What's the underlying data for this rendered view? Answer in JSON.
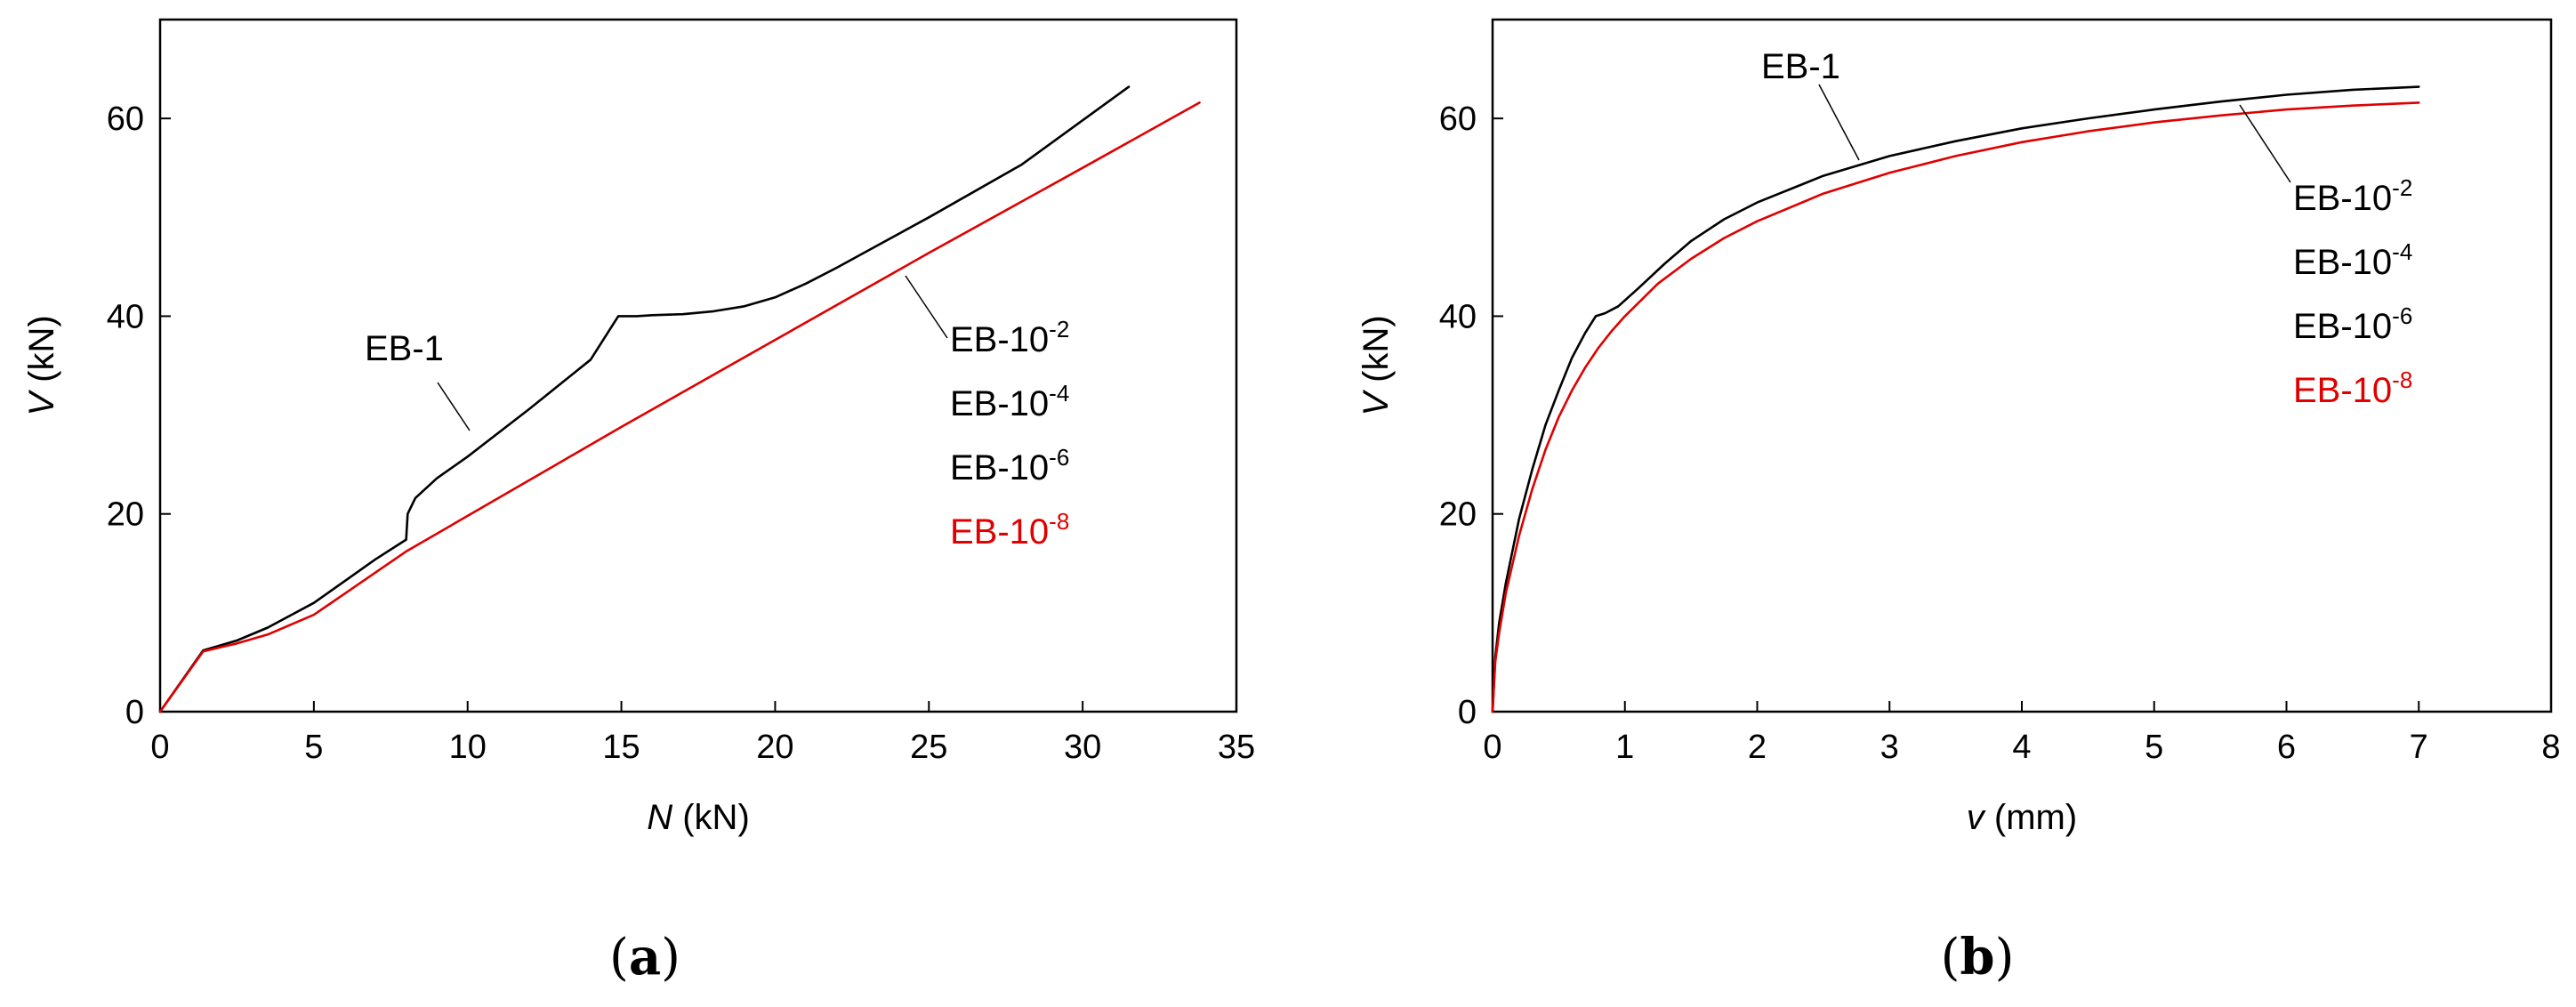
{
  "colors": {
    "black": "#000000",
    "red": "#e00000"
  },
  "chart_data": [
    {
      "id": "a",
      "type": "line",
      "caption": {
        "open": "(",
        "letter": "a",
        "close": ")"
      },
      "xlabel": {
        "var": "N",
        "unit": " (kN)"
      },
      "ylabel": {
        "var": "V",
        "unit": " (kN)"
      },
      "xlim": [
        0,
        35
      ],
      "ylim": [
        0,
        70
      ],
      "xticks": [
        0,
        5,
        10,
        15,
        20,
        25,
        30,
        35
      ],
      "yticks": [
        0,
        20,
        40,
        60
      ],
      "grid": false,
      "series": [
        {
          "name": "EB-1",
          "color": "#000000",
          "points": [
            [
              0,
              0
            ],
            [
              1.4,
              6.2
            ],
            [
              2.5,
              7.2
            ],
            [
              3.5,
              8.5
            ],
            [
              5,
              11
            ],
            [
              6,
              13.2
            ],
            [
              7,
              15.4
            ],
            [
              8,
              17.4
            ],
            [
              8.05,
              20
            ],
            [
              8.3,
              21.6
            ],
            [
              9,
              23.6
            ],
            [
              10,
              25.8
            ],
            [
              12,
              30.6
            ],
            [
              14,
              35.6
            ],
            [
              14.9,
              40
            ],
            [
              15.5,
              40
            ],
            [
              16,
              40.1
            ],
            [
              17,
              40.2
            ],
            [
              18,
              40.5
            ],
            [
              19,
              41
            ],
            [
              20,
              41.9
            ],
            [
              21,
              43.3
            ],
            [
              22,
              44.9
            ],
            [
              23,
              46.6
            ],
            [
              25,
              50
            ],
            [
              28,
              55.3
            ],
            [
              31.5,
              63.2
            ]
          ]
        },
        {
          "name": "EB-10-2",
          "color": "#000000",
          "points": []
        },
        {
          "name": "EB-10-4",
          "color": "#000000",
          "points": []
        },
        {
          "name": "EB-10-6",
          "color": "#000000",
          "points": []
        },
        {
          "name": "EB-10-8",
          "color": "#e00000",
          "points": [
            [
              0,
              0
            ],
            [
              1.4,
              6.1
            ],
            [
              2.5,
              6.9
            ],
            [
              3.5,
              7.8
            ],
            [
              5,
              9.8
            ],
            [
              8,
              16.2
            ],
            [
              10,
              19.8
            ],
            [
              15,
              28.8
            ],
            [
              20,
              37.6
            ],
            [
              25,
              46.4
            ],
            [
              30,
              55
            ],
            [
              33.8,
              61.6
            ]
          ]
        }
      ],
      "legend": [
        {
          "base": "EB-10",
          "exp": "-2",
          "color": "#000000"
        },
        {
          "base": "EB-10",
          "exp": "-4",
          "color": "#000000"
        },
        {
          "base": "EB-10",
          "exp": "-6",
          "color": "#000000"
        },
        {
          "base": "EB-10",
          "exp": "-8",
          "color": "#e00000"
        }
      ],
      "annotation": "EB-1"
    },
    {
      "id": "b",
      "type": "line",
      "caption": {
        "open": "(",
        "letter": "b",
        "close": ")"
      },
      "xlabel": {
        "var": "v",
        "unit": " (mm)"
      },
      "ylabel": {
        "var": "V",
        "unit": " (kN)"
      },
      "xlim": [
        0,
        8
      ],
      "ylim": [
        0,
        70
      ],
      "xticks": [
        0,
        1,
        2,
        3,
        4,
        5,
        6,
        7,
        8
      ],
      "yticks": [
        0,
        20,
        40,
        60
      ],
      "grid": false,
      "series": [
        {
          "name": "EB-1",
          "color": "#000000",
          "points": [
            [
              0,
              0
            ],
            [
              0.02,
              5.5
            ],
            [
              0.05,
              9
            ],
            [
              0.1,
              13
            ],
            [
              0.2,
              19.5
            ],
            [
              0.3,
              24.5
            ],
            [
              0.4,
              29
            ],
            [
              0.5,
              32.5
            ],
            [
              0.6,
              35.8
            ],
            [
              0.7,
              38.3
            ],
            [
              0.78,
              40
            ],
            [
              0.85,
              40.3
            ],
            [
              0.95,
              41
            ],
            [
              1.1,
              42.8
            ],
            [
              1.3,
              45.3
            ],
            [
              1.5,
              47.6
            ],
            [
              1.75,
              49.8
            ],
            [
              2,
              51.5
            ],
            [
              2.5,
              54.2
            ],
            [
              3,
              56.2
            ],
            [
              3.5,
              57.7
            ],
            [
              4,
              59
            ],
            [
              4.5,
              60
            ],
            [
              5,
              60.9
            ],
            [
              5.5,
              61.7
            ],
            [
              6,
              62.4
            ],
            [
              6.5,
              62.9
            ],
            [
              7,
              63.2
            ]
          ]
        },
        {
          "name": "EB-10-2",
          "color": "#000000",
          "points": []
        },
        {
          "name": "EB-10-4",
          "color": "#000000",
          "points": []
        },
        {
          "name": "EB-10-6",
          "color": "#000000",
          "points": []
        },
        {
          "name": "EB-10-8",
          "color": "#e00000",
          "points": [
            [
              0,
              0
            ],
            [
              0.02,
              5
            ],
            [
              0.05,
              8
            ],
            [
              0.1,
              12
            ],
            [
              0.2,
              17.8
            ],
            [
              0.3,
              22.5
            ],
            [
              0.4,
              26.5
            ],
            [
              0.5,
              29.8
            ],
            [
              0.6,
              32.5
            ],
            [
              0.7,
              34.8
            ],
            [
              0.8,
              36.8
            ],
            [
              0.9,
              38.5
            ],
            [
              1,
              40
            ],
            [
              1.25,
              43.3
            ],
            [
              1.5,
              45.8
            ],
            [
              1.75,
              47.9
            ],
            [
              2,
              49.6
            ],
            [
              2.5,
              52.4
            ],
            [
              3,
              54.5
            ],
            [
              3.5,
              56.2
            ],
            [
              4,
              57.6
            ],
            [
              4.5,
              58.7
            ],
            [
              5,
              59.6
            ],
            [
              5.5,
              60.3
            ],
            [
              6,
              60.9
            ],
            [
              6.5,
              61.3
            ],
            [
              7,
              61.6
            ]
          ]
        }
      ],
      "legend": [
        {
          "base": "EB-10",
          "exp": "-2",
          "color": "#000000"
        },
        {
          "base": "EB-10",
          "exp": "-4",
          "color": "#000000"
        },
        {
          "base": "EB-10",
          "exp": "-6",
          "color": "#000000"
        },
        {
          "base": "EB-10",
          "exp": "-8",
          "color": "#e00000"
        }
      ],
      "annotation": "EB-1"
    }
  ]
}
